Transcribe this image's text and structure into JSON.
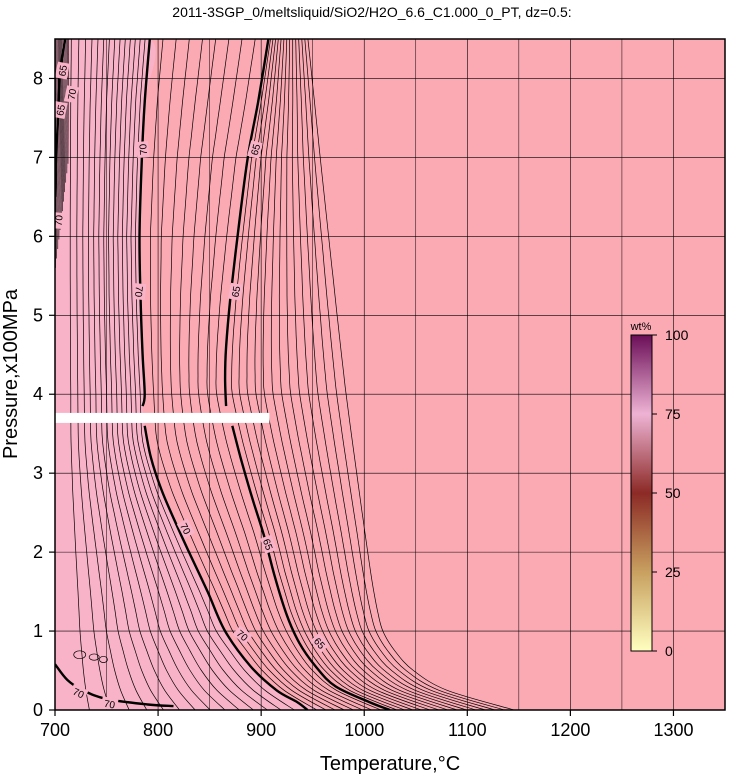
{
  "chart_data": {
    "type": "contour",
    "title": "2011-3SGP_0/meltsliquid/SiO2/H2O_6.6_C1.000_0_PT, dz=0.5:",
    "xlabel": "Temperature,°C",
    "ylabel": "Pressure,x100MPa",
    "xlim": [
      700,
      1350
    ],
    "ylim": [
      0,
      8.5
    ],
    "x_ticks": [
      700,
      800,
      900,
      1000,
      1100,
      1200,
      1300
    ],
    "y_ticks": [
      0,
      1,
      2,
      3,
      4,
      5,
      6,
      7,
      8
    ],
    "grid": true,
    "background_color": "#fbaab4",
    "low_temperature_region_color": "#f9b3c9",
    "gap_band": {
      "pressure": 3.7,
      "t_min": 700,
      "t_max": 908
    },
    "colorbar": {
      "label": "wt%",
      "range": [
        0,
        100
      ],
      "ticks": [
        0,
        25,
        50,
        75,
        100
      ],
      "colors": [
        "#ffffc0",
        "#c8a060",
        "#8c2a26",
        "#eeb3d4",
        "#6b0e58"
      ]
    },
    "bold_contours": [
      {
        "level": 70,
        "points": [
          [
            710,
            8.5
          ],
          [
            705,
            8.1
          ],
          [
            703,
            7.5
          ],
          [
            701,
            7.0
          ],
          [
            700,
            6.5
          ]
        ]
      },
      {
        "level": 70,
        "points": [
          [
            792,
            8.5
          ],
          [
            787,
            7.7
          ],
          [
            784,
            6.9
          ],
          [
            782,
            6.0
          ],
          [
            783,
            5.2
          ],
          [
            785,
            4.5
          ],
          [
            787,
            4.0
          ],
          [
            785,
            3.85
          ]
        ]
      },
      {
        "level": 70,
        "points": [
          [
            787,
            3.6
          ],
          [
            793,
            3.2
          ],
          [
            803,
            2.8
          ],
          [
            816,
            2.4
          ],
          [
            830,
            2.0
          ],
          [
            848,
            1.5
          ],
          [
            865,
            1.0
          ],
          [
            890,
            0.55
          ],
          [
            915,
            0.25
          ],
          [
            935,
            0.1
          ],
          [
            945,
            0
          ]
        ]
      },
      {
        "level": 65,
        "points": [
          [
            907,
            8.5
          ],
          [
            897,
            7.7
          ],
          [
            887,
            7.0
          ],
          [
            878,
            6.1
          ],
          [
            870,
            5.2
          ],
          [
            866,
            4.6
          ],
          [
            865,
            4.2
          ],
          [
            866,
            3.85
          ]
        ]
      },
      {
        "level": 65,
        "points": [
          [
            872,
            3.6
          ],
          [
            880,
            3.2
          ],
          [
            891,
            2.7
          ],
          [
            903,
            2.2
          ],
          [
            913,
            1.7
          ],
          [
            925,
            1.2
          ],
          [
            937,
            0.85
          ],
          [
            953,
            0.55
          ],
          [
            972,
            0.3
          ],
          [
            1005,
            0.1
          ],
          [
            1025,
            0
          ]
        ]
      },
      {
        "level": 70,
        "points": [
          [
            700,
            0.58
          ],
          [
            712,
            0.38
          ],
          [
            727,
            0.25
          ],
          [
            750,
            0.14
          ],
          [
            790,
            0.07
          ],
          [
            815,
            0.05
          ]
        ]
      }
    ],
    "contour_labels": [
      {
        "text": "70",
        "t": 716,
        "p": 7.8,
        "angle": -80
      },
      {
        "text": "65",
        "t": 705,
        "p": 7.6,
        "angle": -80
      },
      {
        "text": "70",
        "t": 703,
        "p": 6.2,
        "angle": -85
      },
      {
        "text": "65",
        "t": 707,
        "p": 8.1,
        "angle": -80
      },
      {
        "text": "70",
        "t": 785,
        "p": 7.1,
        "angle": -95
      },
      {
        "text": "70",
        "t": 782,
        "p": 5.3,
        "angle": 95
      },
      {
        "text": "65",
        "t": 894,
        "p": 7.1,
        "angle": -75
      },
      {
        "text": "65",
        "t": 875,
        "p": 5.3,
        "angle": -80
      },
      {
        "text": "70",
        "t": 827,
        "p": 2.3,
        "angle": 62
      },
      {
        "text": "65",
        "t": 907,
        "p": 2.1,
        "angle": 70
      },
      {
        "text": "70",
        "t": 882,
        "p": 0.95,
        "angle": 40
      },
      {
        "text": "65",
        "t": 957,
        "p": 0.85,
        "angle": 48
      },
      {
        "text": "70",
        "t": 723,
        "p": 0.22,
        "angle": 25
      },
      {
        "text": "70",
        "t": 753,
        "p": 0.08,
        "angle": 10
      }
    ]
  }
}
